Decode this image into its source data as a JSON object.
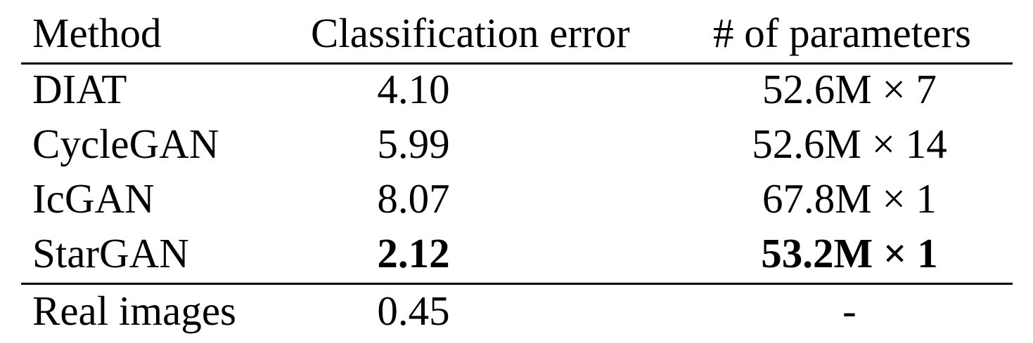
{
  "table": {
    "columns": [
      "Method",
      "Classification error",
      "# of parameters"
    ],
    "rows": [
      {
        "method": "DIAT",
        "error": "4.10",
        "params": "52.6M × 7",
        "bold": false
      },
      {
        "method": "CycleGAN",
        "error": "5.99",
        "params": "52.6M × 14",
        "bold": false
      },
      {
        "method": "IcGAN",
        "error": "8.07",
        "params": "67.8M × 1",
        "bold": false
      },
      {
        "method": "StarGAN",
        "error": "2.12",
        "params": "53.2M × 1",
        "bold": true
      }
    ],
    "footer_row": {
      "method": "Real images",
      "error": "0.45",
      "params": "-"
    }
  }
}
